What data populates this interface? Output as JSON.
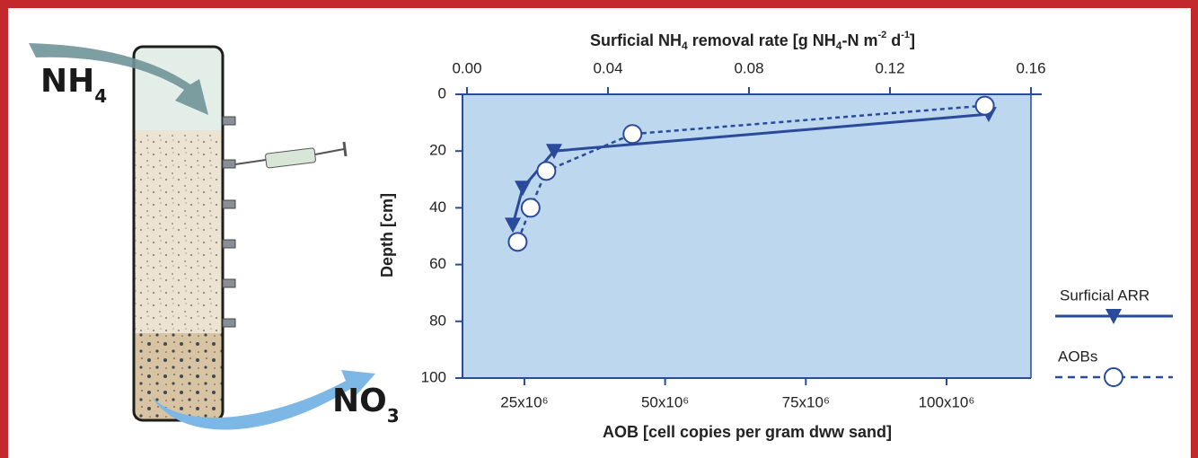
{
  "diagram": {
    "inflow_label": "NH",
    "inflow_subscript": "4",
    "outflow_label": "NO",
    "outflow_subscript": "3"
  },
  "chart_data": {
    "type": "line",
    "x2_label_parts": [
      "Surficial NH",
      "4",
      " removal rate [g NH",
      "4",
      "-N m",
      "-2",
      " d",
      "-1",
      "]"
    ],
    "xlabel": "AOB [cell copies per gram dww sand]",
    "ylabel": "Depth [cm]",
    "xlim": [
      14000000,
      115000000
    ],
    "xticks": [
      {
        "value": 25000000,
        "label": "25x10⁶"
      },
      {
        "value": 50000000,
        "label": "50x10⁶"
      },
      {
        "value": 75000000,
        "label": "75x10⁶"
      },
      {
        "value": 100000000,
        "label": "100x10⁶"
      }
    ],
    "x2lim": [
      0,
      0.16
    ],
    "x2ticks": [
      {
        "value": 0,
        "label": "0.00"
      },
      0.04,
      0.08,
      0.12,
      0.16
    ],
    "ylim": [
      0,
      100
    ],
    "y_reversed": true,
    "yticks": [
      0,
      20,
      40,
      60,
      80,
      100
    ],
    "background": "#bdd7ee",
    "series": [
      {
        "name": "Surficial ARR",
        "color": "#2a4b9b",
        "axis": "x2",
        "marker": "triangle-down",
        "line": "solid",
        "x": [
          0.148,
          0.0247,
          0.0158,
          0.013
        ],
        "values": [
          7,
          20,
          33,
          46
        ]
      },
      {
        "name": "AOBs",
        "color": "#2a4b9b",
        "axis": "x",
        "marker": "circle",
        "line": "dashed",
        "x": [
          106800000,
          44200000,
          28900000,
          26100000,
          23800000
        ],
        "values": [
          4,
          14,
          27,
          40,
          52
        ]
      }
    ]
  }
}
